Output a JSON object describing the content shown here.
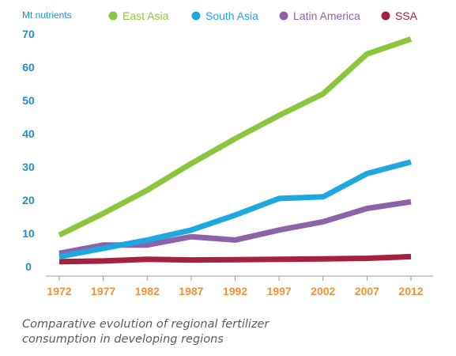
{
  "chart_data": {
    "type": "line",
    "title": "",
    "ylabel": "Mt nutrients",
    "xlabel": "",
    "x": [
      "1972",
      "1977",
      "1982",
      "1987",
      "1992",
      "1997",
      "2002",
      "2007",
      "2012"
    ],
    "yticks": [
      0,
      10,
      20,
      30,
      40,
      50,
      60,
      70
    ],
    "ylim": [
      0,
      72
    ],
    "grid": false,
    "legend_position": "top",
    "series": [
      {
        "name": "East Asia",
        "color": "#8cc63f",
        "values": [
          9.5,
          16,
          23,
          31,
          38.5,
          45.5,
          52,
          64,
          68.5
        ]
      },
      {
        "name": "South Asia",
        "color": "#1fa8e0",
        "values": [
          3,
          5.5,
          8,
          11,
          15.5,
          20.5,
          21,
          28,
          31.5
        ]
      },
      {
        "name": "Latin America",
        "color": "#8e62a8",
        "values": [
          4,
          6.5,
          6.5,
          9,
          8,
          11,
          13.5,
          17.5,
          19.5
        ]
      },
      {
        "name": "SSA",
        "color": "#a6203f",
        "values": [
          1.5,
          1.7,
          2.2,
          2.0,
          2.1,
          2.2,
          2.3,
          2.5,
          3.0
        ]
      }
    ]
  },
  "colors": {
    "axis_label": "#1e8fc8",
    "tick_y": "#1e8fc8",
    "tick_x": "#f0913a",
    "axis_line": "#999999"
  },
  "caption": {
    "line1": "Comparative evolution of regional fertilizer",
    "line2": "consumption in developing regions"
  }
}
